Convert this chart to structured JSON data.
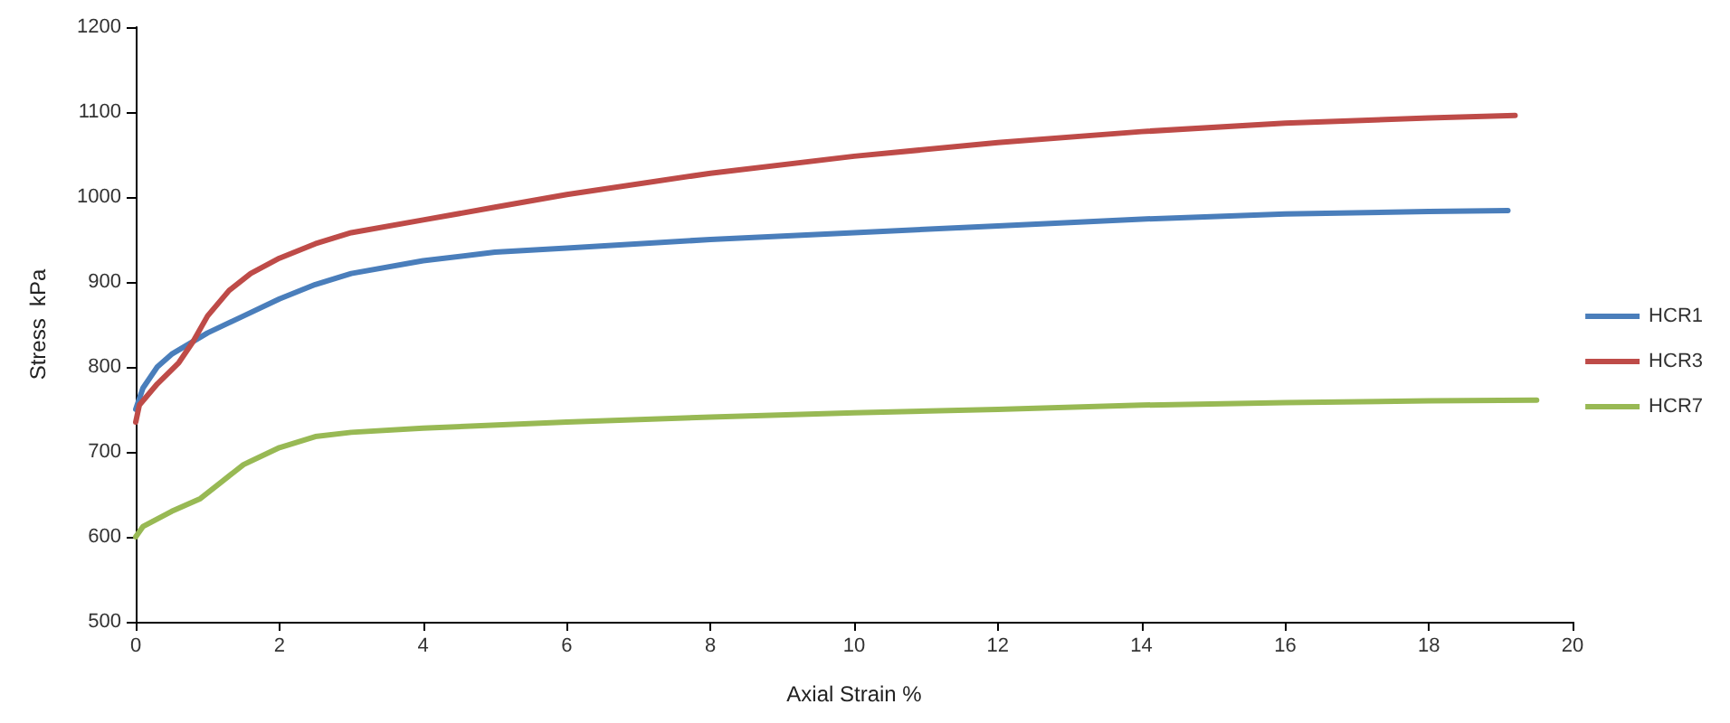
{
  "chart_data": {
    "type": "line",
    "xlabel": "Axial Strain %",
    "ylabel": "Stress  kPa",
    "xlim": [
      0,
      20
    ],
    "xticks": [
      0,
      2,
      4,
      6,
      8,
      10,
      12,
      14,
      16,
      18,
      20
    ],
    "ylim": [
      500,
      1200
    ],
    "yticks": [
      500,
      600,
      700,
      800,
      900,
      1000,
      1100,
      1200
    ],
    "grid": false,
    "legend": "right",
    "marker": "none",
    "line_style": "solid",
    "series": [
      {
        "name": "HCR1",
        "color": "#4a7ebb",
        "x": [
          0,
          0.1,
          0.3,
          0.5,
          1,
          1.5,
          2,
          2.5,
          3,
          4,
          5,
          6,
          8,
          10,
          12,
          14,
          16,
          18,
          19.1
        ],
        "values": [
          750,
          775,
          800,
          815,
          840,
          860,
          880,
          897,
          910,
          925,
          935,
          940,
          950,
          958,
          966,
          974,
          980,
          983,
          984
        ]
      },
      {
        "name": "HCR3",
        "color": "#be4b48",
        "x": [
          0,
          0.05,
          0.3,
          0.6,
          0.8,
          1,
          1.3,
          1.6,
          2,
          2.5,
          3,
          4,
          5,
          6,
          8,
          10,
          12,
          14,
          16,
          18,
          19.2
        ],
        "values": [
          735,
          755,
          780,
          805,
          830,
          860,
          890,
          910,
          928,
          945,
          958,
          973,
          988,
          1003,
          1028,
          1048,
          1064,
          1077,
          1087,
          1093,
          1096
        ]
      },
      {
        "name": "HCR7",
        "color": "#98b954",
        "x": [
          0,
          0.1,
          0.5,
          0.9,
          1.2,
          1.5,
          2,
          2.5,
          3,
          4,
          6,
          8,
          10,
          12,
          14,
          16,
          18,
          19.5
        ],
        "values": [
          600,
          612,
          630,
          645,
          665,
          685,
          705,
          718,
          723,
          728,
          735,
          741,
          746,
          750,
          755,
          758,
          760,
          761
        ]
      }
    ]
  }
}
